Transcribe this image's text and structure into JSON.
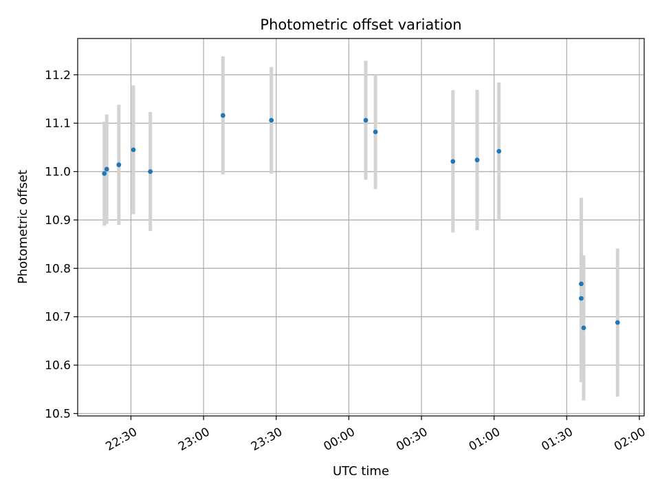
{
  "chart_data": {
    "type": "scatter",
    "title": "Photometric offset variation",
    "xlabel": "UTC time",
    "ylabel": "Photometric offset",
    "x_axis": "time",
    "x_tick_labels": [
      "22:30",
      "23:00",
      "23:30",
      "00:00",
      "00:30",
      "01:00",
      "01:30",
      "02:00"
    ],
    "y_tick_labels": [
      "10.5",
      "10.6",
      "10.7",
      "10.8",
      "10.9",
      "11.0",
      "11.1",
      "11.2"
    ],
    "ylim": [
      10.495,
      11.275
    ],
    "xlim": [
      "22:08",
      "02:02"
    ],
    "grid": true,
    "series": [
      {
        "marker_color": "#1f77b4",
        "errorbar_color": "#d3d3d3",
        "points": [
          {
            "x": "22:19",
            "y": 10.996,
            "yerr_low": 0.108,
            "yerr_high": 0.107
          },
          {
            "x": "22:20",
            "y": 11.005,
            "yerr_low": 0.113,
            "yerr_high": 0.113
          },
          {
            "x": "22:25",
            "y": 11.014,
            "yerr_low": 0.124,
            "yerr_high": 0.124
          },
          {
            "x": "22:31",
            "y": 11.045,
            "yerr_low": 0.133,
            "yerr_high": 0.133
          },
          {
            "x": "22:38",
            "y": 11.0,
            "yerr_low": 0.123,
            "yerr_high": 0.123
          },
          {
            "x": "23:08",
            "y": 11.116,
            "yerr_low": 0.122,
            "yerr_high": 0.122
          },
          {
            "x": "23:28",
            "y": 11.106,
            "yerr_low": 0.11,
            "yerr_high": 0.11
          },
          {
            "x": "00:07",
            "y": 11.106,
            "yerr_low": 0.123,
            "yerr_high": 0.123
          },
          {
            "x": "00:11",
            "y": 11.082,
            "yerr_low": 0.118,
            "yerr_high": 0.118
          },
          {
            "x": "00:43",
            "y": 11.021,
            "yerr_low": 0.147,
            "yerr_high": 0.147
          },
          {
            "x": "00:53",
            "y": 11.024,
            "yerr_low": 0.145,
            "yerr_high": 0.145
          },
          {
            "x": "01:02",
            "y": 11.042,
            "yerr_low": 0.142,
            "yerr_high": 0.142
          },
          {
            "x": "01:36",
            "y": 10.768,
            "yerr_low": 0.178,
            "yerr_high": 0.178
          },
          {
            "x": "01:36",
            "y": 10.738,
            "yerr_low": 0.173,
            "yerr_high": 0.173
          },
          {
            "x": "01:37",
            "y": 10.677,
            "yerr_low": 0.15,
            "yerr_high": 0.15
          },
          {
            "x": "01:51",
            "y": 10.688,
            "yerr_low": 0.153,
            "yerr_high": 0.153
          }
        ]
      }
    ]
  }
}
